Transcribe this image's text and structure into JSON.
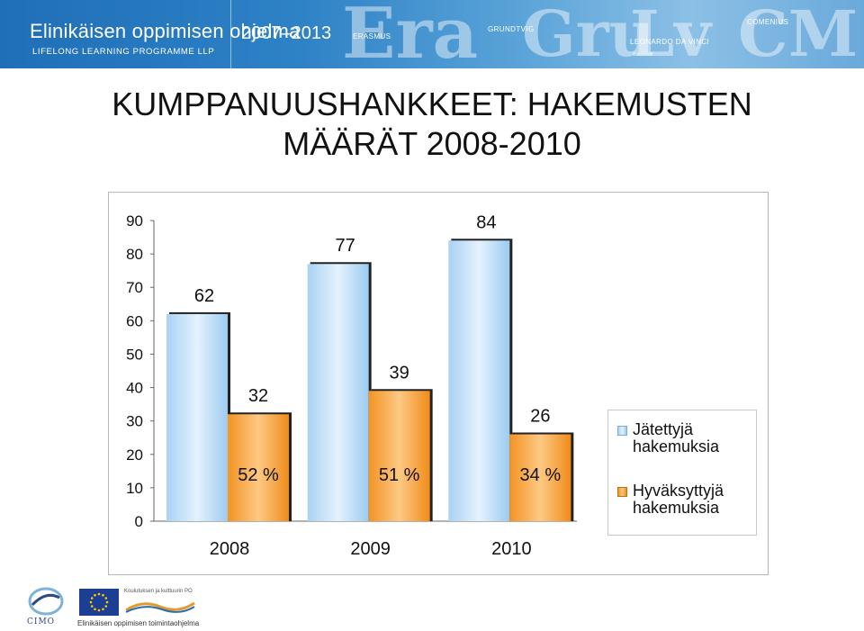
{
  "banner": {
    "title": "Elinikäisen oppimisen ohjelma",
    "subtitle": "LIFELONG LEARNING PROGRAMME LLP",
    "years": "2007–2013",
    "programs": [
      "ERASMUS",
      "GRUNDTVIG",
      "LEONARDO DA VINCI",
      "COMENIUS"
    ]
  },
  "page_title": "KUMPPANUUSHANKKEET: HAKEMUSTEN MÄÄRÄT 2008-2010",
  "chart_data": {
    "type": "bar",
    "categories": [
      "2008",
      "2009",
      "2010"
    ],
    "series": [
      {
        "name": "Jätettyjä hakemuksia",
        "values": [
          62,
          77,
          84
        ],
        "color": "#cfe6fa"
      },
      {
        "name": "Hyväksyttyjä hakemuksia",
        "values": [
          32,
          39,
          26
        ],
        "color": "#f7a23c"
      }
    ],
    "percent_labels": [
      "52 %",
      "51 %",
      "34 %"
    ],
    "yticks": [
      0,
      10,
      20,
      30,
      40,
      50,
      60,
      70,
      80,
      90
    ],
    "ylim": [
      0,
      90
    ],
    "grid": false,
    "legend_position": "right"
  },
  "legend": {
    "items": [
      {
        "label": "Jätettyjä hakemuksia"
      },
      {
        "label": "Hyväksyttyjä hakemuksia"
      }
    ]
  },
  "footer": {
    "cimo": "CIMO",
    "org": "Koulutuksen ja kulttuurin PO",
    "agency": "Elinikäisen oppimisen toimintaohjelma"
  }
}
